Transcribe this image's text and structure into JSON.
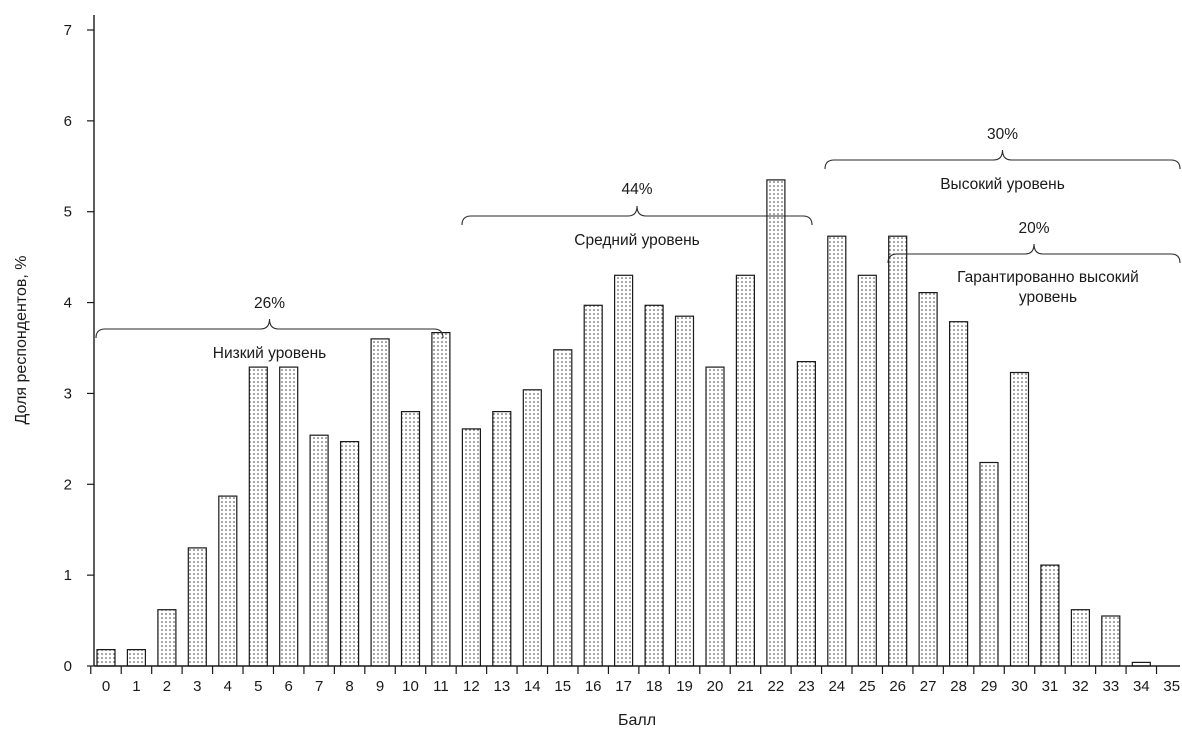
{
  "chart_data": {
    "type": "bar",
    "xlabel": "Балл",
    "ylabel": "Доля респондентов, %",
    "ylim": [
      0,
      7
    ],
    "yticks": [
      "0",
      "1",
      "2",
      "3",
      "4",
      "5",
      "6",
      "7"
    ],
    "categories": [
      "0",
      "1",
      "2",
      "3",
      "4",
      "5",
      "6",
      "7",
      "8",
      "9",
      "10",
      "11",
      "12",
      "13",
      "14",
      "15",
      "16",
      "17",
      "18",
      "19",
      "20",
      "21",
      "22",
      "23",
      "24",
      "25",
      "26",
      "27",
      "28",
      "29",
      "30",
      "31",
      "32",
      "33",
      "34",
      "35"
    ],
    "values": [
      0.18,
      0.18,
      0.62,
      1.3,
      1.87,
      3.29,
      3.29,
      2.54,
      2.47,
      3.6,
      2.8,
      3.67,
      2.61,
      2.8,
      3.04,
      3.48,
      3.97,
      4.3,
      3.97,
      3.85,
      3.29,
      4.3,
      5.35,
      3.35,
      4.73,
      4.3,
      4.73,
      4.11,
      3.79,
      2.24,
      3.23,
      1.11,
      0.62,
      0.55,
      0.04,
      null
    ],
    "grid": false,
    "bar_fill": "dotted pattern",
    "annotations": [
      {
        "id": "low",
        "percent": "26%",
        "label": "Низкий уровень",
        "from_score": 0,
        "to_score": 11
      },
      {
        "id": "mid",
        "percent": "44%",
        "label": "Средний уровень",
        "from_score": 12,
        "to_score": 23
      },
      {
        "id": "high",
        "percent": "30%",
        "label": "Высокий уровень",
        "from_score": 24,
        "to_score": 35
      },
      {
        "id": "guaranteed",
        "percent": "20%",
        "label_lines": [
          "Гарантированно высокий",
          "уровень"
        ],
        "from_score": 26,
        "to_score": 35
      }
    ]
  }
}
